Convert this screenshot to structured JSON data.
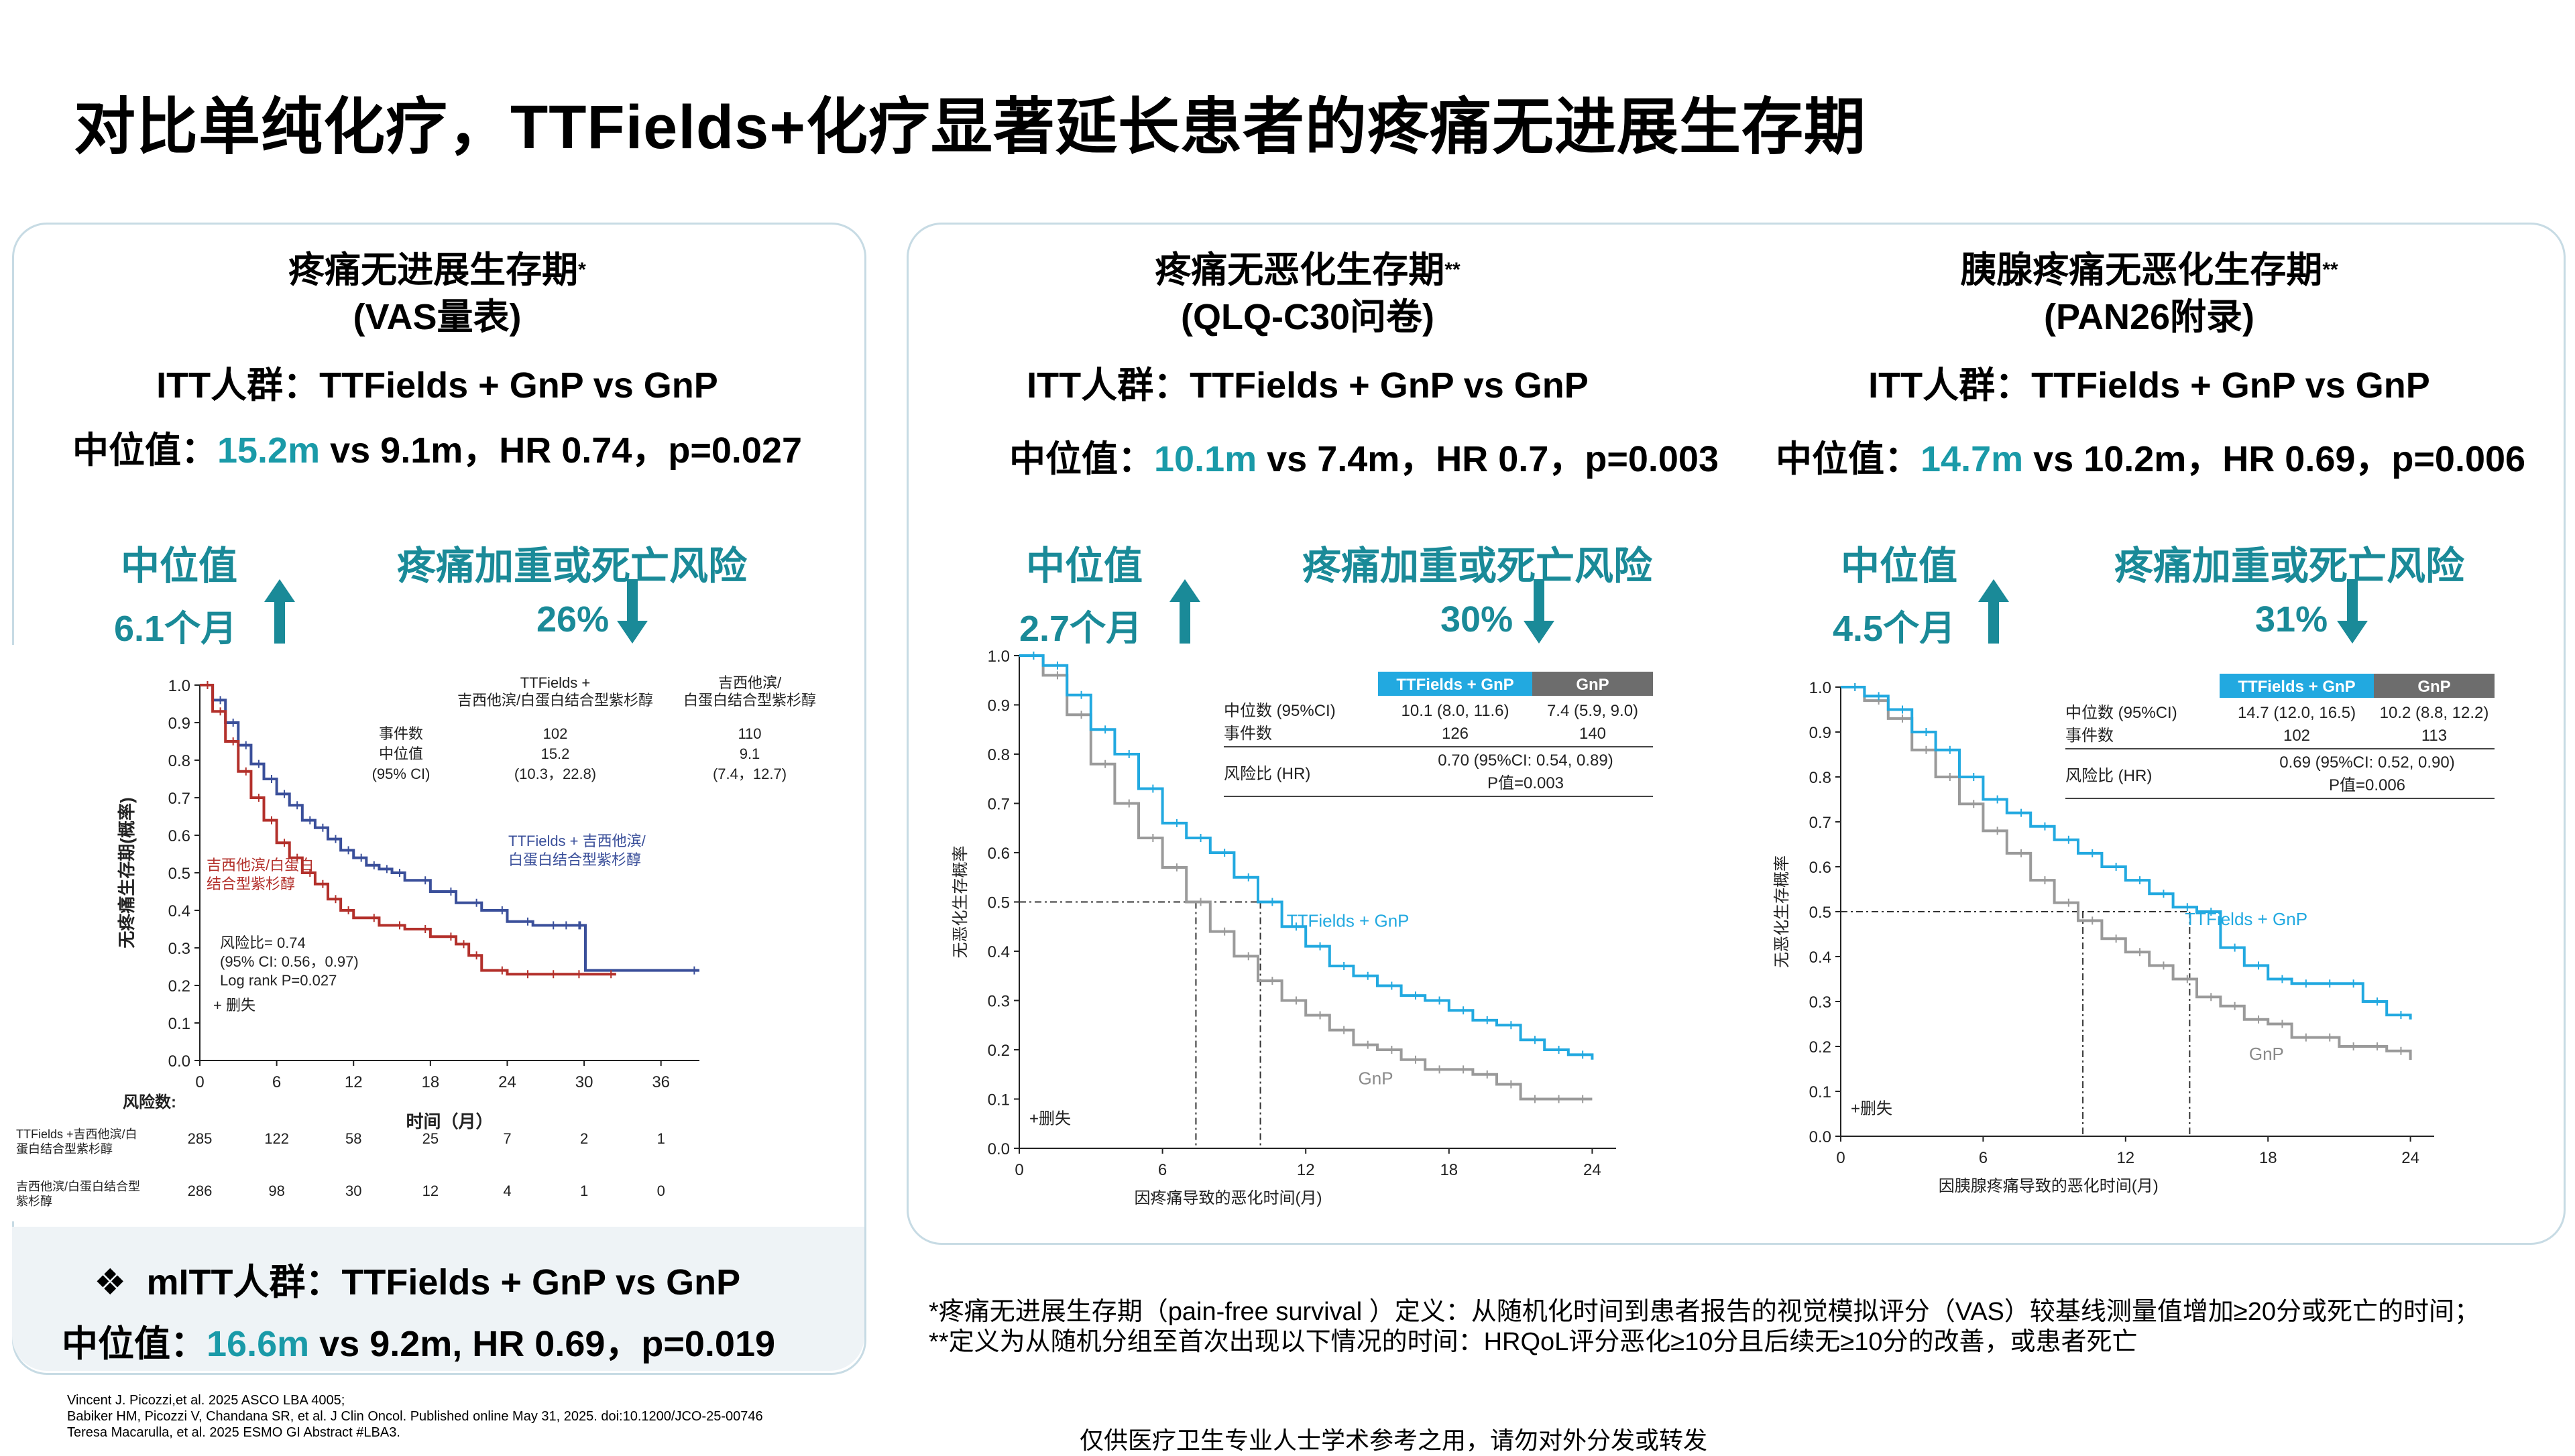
{
  "title": "对比单纯化疗，TTFields+化疗显著延长患者的疼痛无进展生存期",
  "panels": {
    "pfs": {
      "heading": "疼痛无进展生存期",
      "heading_mark": "*",
      "subheading": "(VAS量表)",
      "itt": "ITT人群：TTFields + GnP vs GnP",
      "median_prefix": "中位值：",
      "median_highlight": "15.2m",
      "median_rest": " vs 9.1m，HR 0.74，p=0.027",
      "stat1_label": "中位值",
      "stat1_value": "6.1个月",
      "stat2_label": "疼痛加重或死亡风险",
      "stat2_value": "26%",
      "mitt_bullet": "❖",
      "mitt": "mITT人群：TTFields + GnP vs GnP",
      "mitt_median_prefix": "中位值：",
      "mitt_median_highlight": "16.6m",
      "mitt_median_rest": " vs 9.2m, HR 0.69，p=0.019"
    },
    "qlq": {
      "heading": "疼痛无恶化生存期",
      "heading_mark": "**",
      "subheading": "(QLQ-C30问卷)",
      "itt": "ITT人群：TTFields + GnP vs GnP",
      "median_prefix": "中位值：",
      "median_highlight": "10.1m",
      "median_rest": " vs 7.4m，HR 0.7，p=0.003",
      "stat1_label": "中位值",
      "stat1_value": "2.7个月",
      "stat2_label": "疼痛加重或死亡风险",
      "stat2_value": "30%"
    },
    "pan": {
      "heading": "胰腺疼痛无恶化生存期",
      "heading_mark": "**",
      "subheading": "(PAN26附录)",
      "itt": "ITT人群：TTFields + GnP vs GnP",
      "median_prefix": "中位值：",
      "median_highlight": "14.7m",
      "median_rest": " vs 10.2m，HR 0.69，p=0.006",
      "stat1_label": "中位值",
      "stat1_value": "4.5个月",
      "stat2_label": "疼痛加重或死亡风险",
      "stat2_value": "31%"
    }
  },
  "chart_data": [
    {
      "type": "line",
      "name": "VAS pain-free survival KM curve",
      "ylabel": "无疼痛生存期(概率)",
      "xlabel": "时间（月）",
      "xticks": [
        0,
        6,
        12,
        18,
        24,
        30,
        36
      ],
      "yticks": [
        0.0,
        0.1,
        0.2,
        0.3,
        0.4,
        0.5,
        0.6,
        0.7,
        0.8,
        0.9,
        1.0
      ],
      "ylim": [
        0,
        1
      ],
      "xlim": [
        0,
        39
      ],
      "series": [
        {
          "name": "TTFields + 吉西他滨/白蛋白结合型紫杉醇",
          "color": "#3a4f9a",
          "x": [
            0,
            1,
            2,
            3,
            4,
            5,
            6,
            7,
            8,
            9,
            10,
            11,
            12,
            13,
            14,
            15,
            16,
            18,
            20,
            22,
            24,
            26,
            28,
            29,
            30,
            30.1,
            39
          ],
          "y": [
            1.0,
            0.96,
            0.9,
            0.84,
            0.79,
            0.75,
            0.71,
            0.68,
            0.64,
            0.62,
            0.59,
            0.56,
            0.54,
            0.52,
            0.51,
            0.5,
            0.48,
            0.45,
            0.42,
            0.4,
            0.37,
            0.36,
            0.36,
            0.36,
            0.36,
            0.24,
            0.24
          ]
        },
        {
          "name": "吉西他滨/白蛋白结合型紫杉醇",
          "color": "#b3302b",
          "x": [
            0,
            1,
            2,
            3,
            4,
            5,
            6,
            7,
            8,
            9,
            10,
            11,
            12,
            14,
            16,
            18,
            20,
            21,
            22,
            24,
            26,
            28,
            30,
            32.5
          ],
          "y": [
            1.0,
            0.93,
            0.85,
            0.77,
            0.7,
            0.64,
            0.58,
            0.54,
            0.5,
            0.47,
            0.43,
            0.4,
            0.38,
            0.36,
            0.35,
            0.33,
            0.31,
            0.28,
            0.24,
            0.23,
            0.23,
            0.23,
            0.23,
            0.23
          ]
        }
      ],
      "legend_top": {
        "col1_header": "TTFields +\n吉西他滨/白蛋白结合型紫杉醇",
        "col2_header": "吉西他滨/\n白蛋白结合型紫杉醇",
        "row_labels": [
          "事件数",
          "中位值",
          "(95% CI)"
        ],
        "col1": [
          "102",
          "15.2",
          "(10.3，22.8)"
        ],
        "col2": [
          "110",
          "9.1",
          "(7.4，12.7)"
        ]
      },
      "label_ttf": "TTFields + 吉西他滨/\n白蛋白结合型紫杉醇",
      "label_gnp": "吉西他滨/白蛋白\n结合型紫杉醇",
      "hr_text": [
        "风险比= 0.74",
        "(95% CI: 0.56，0.97)",
        "Log rank P=0.027"
      ],
      "censor_label": "+ 删失",
      "risk_title": "风险数:",
      "risk_rows": [
        {
          "label": "TTFields +吉西他滨/白\n蛋白结合型紫杉醇",
          "values": [
            "285",
            "122",
            "58",
            "25",
            "7",
            "2",
            "1"
          ]
        },
        {
          "label": "吉西他滨/白蛋白结合型\n紫杉醇",
          "values": [
            "286",
            "98",
            "30",
            "12",
            "4",
            "1",
            "0"
          ]
        }
      ]
    },
    {
      "type": "line",
      "name": "QLQ-C30 pain deterioration-free survival KM curve",
      "ylabel": "无恶化生存概率",
      "xlabel": "因疼痛导致的恶化时间(月)",
      "xticks": [
        0,
        6,
        12,
        18,
        24
      ],
      "yticks": [
        0.0,
        0.1,
        0.2,
        0.3,
        0.4,
        0.5,
        0.6,
        0.7,
        0.8,
        0.9,
        1.0
      ],
      "ylim": [
        0,
        1
      ],
      "xlim": [
        0,
        25
      ],
      "series": [
        {
          "name": "TTFields + GnP",
          "color": "#22a9e0",
          "x": [
            0,
            1,
            2,
            3,
            4,
            5,
            6,
            7,
            8,
            9,
            10,
            11,
            12,
            13,
            14,
            15,
            16,
            17,
            18,
            19,
            20,
            21,
            22,
            23,
            24
          ],
          "y": [
            1.0,
            0.98,
            0.92,
            0.85,
            0.8,
            0.73,
            0.66,
            0.63,
            0.6,
            0.55,
            0.5,
            0.45,
            0.41,
            0.37,
            0.35,
            0.33,
            0.31,
            0.3,
            0.28,
            0.26,
            0.25,
            0.22,
            0.2,
            0.19,
            0.18
          ]
        },
        {
          "name": "GnP",
          "color": "#9a9a9a",
          "x": [
            0,
            1,
            2,
            3,
            4,
            5,
            6,
            7,
            8,
            9,
            10,
            11,
            12,
            13,
            14,
            15,
            16,
            17,
            18,
            19,
            20,
            21,
            22,
            23,
            24
          ],
          "y": [
            1.0,
            0.96,
            0.88,
            0.78,
            0.7,
            0.63,
            0.57,
            0.5,
            0.44,
            0.39,
            0.34,
            0.3,
            0.27,
            0.24,
            0.21,
            0.2,
            0.18,
            0.16,
            0.16,
            0.15,
            0.13,
            0.1,
            0.1,
            0.1,
            0.1
          ]
        }
      ],
      "median_lines": [
        7.4,
        10.1
      ],
      "table": {
        "headers": [
          "TTFields + GnP",
          "GnP"
        ],
        "rows": [
          {
            "label": "中位数 (95%CI)",
            "values": [
              "10.1 (8.0, 11.6)",
              "7.4 (5.9, 9.0)"
            ]
          },
          {
            "label": "事件数",
            "values": [
              "126",
              "140"
            ]
          }
        ],
        "hr_label": "风险比 (HR)",
        "hr_value": "0.70 (95%CI: 0.54, 0.89)",
        "p_value": "P值=0.003"
      },
      "label_ttf": "TTFields + GnP",
      "label_gnp": "GnP",
      "censor_label": "+删失"
    },
    {
      "type": "line",
      "name": "PAN26 pancreatic pain deterioration-free survival KM curve",
      "ylabel": "无恶化生存概率",
      "xlabel": "因胰腺疼痛导致的恶化时间(月)",
      "xticks": [
        0,
        6,
        12,
        18,
        24
      ],
      "yticks": [
        0.0,
        0.1,
        0.2,
        0.3,
        0.4,
        0.5,
        0.6,
        0.7,
        0.8,
        0.9,
        1.0
      ],
      "ylim": [
        0,
        1
      ],
      "xlim": [
        0,
        25
      ],
      "series": [
        {
          "name": "TTFields + GnP",
          "color": "#22a9e0",
          "x": [
            0,
            1,
            2,
            3,
            4,
            5,
            6,
            7,
            8,
            9,
            10,
            11,
            12,
            13,
            14,
            15,
            16,
            17,
            18,
            19,
            20,
            21,
            22,
            23,
            24
          ],
          "y": [
            1.0,
            0.98,
            0.95,
            0.9,
            0.86,
            0.8,
            0.75,
            0.72,
            0.69,
            0.66,
            0.63,
            0.6,
            0.57,
            0.54,
            0.51,
            0.5,
            0.42,
            0.38,
            0.35,
            0.34,
            0.34,
            0.34,
            0.3,
            0.27,
            0.26
          ]
        },
        {
          "name": "GnP",
          "color": "#9a9a9a",
          "x": [
            0,
            1,
            2,
            3,
            4,
            5,
            6,
            7,
            8,
            9,
            10,
            11,
            12,
            13,
            14,
            15,
            16,
            17,
            18,
            19,
            20,
            21,
            22,
            23,
            24
          ],
          "y": [
            1.0,
            0.97,
            0.93,
            0.86,
            0.8,
            0.74,
            0.68,
            0.63,
            0.57,
            0.52,
            0.48,
            0.44,
            0.41,
            0.38,
            0.35,
            0.31,
            0.29,
            0.26,
            0.25,
            0.22,
            0.22,
            0.2,
            0.2,
            0.19,
            0.17
          ]
        }
      ],
      "median_lines": [
        10.2,
        14.7
      ],
      "table": {
        "headers": [
          "TTFields + GnP",
          "GnP"
        ],
        "rows": [
          {
            "label": "中位数 (95%CI)",
            "values": [
              "14.7 (12.0, 16.5)",
              "10.2 (8.8, 12.2)"
            ]
          },
          {
            "label": "事件数",
            "values": [
              "102",
              "113"
            ]
          }
        ],
        "hr_label": "风险比 (HR)",
        "hr_value": "0.69 (95%CI: 0.52, 0.90)",
        "p_value": "P值=0.006"
      },
      "label_ttf": "TTFields + GnP",
      "label_gnp": "GnP",
      "censor_label": "+删失"
    }
  ],
  "footnotes": {
    "line1": "*疼痛无进展生存期（pain-free survival ）定义：从随机化时间到患者报告的视觉模拟评分（VAS）较基线测量值增加≥20分或死亡的时间；",
    "line2": "**定义为从随机分组至首次出现以下情况的时间：HRQoL评分恶化≥10分且后续无≥10分的改善，或患者死亡"
  },
  "references": [
    "Vincent J. Picozzi,et al. 2025 ASCO LBA 4005;",
    "Babiker HM, Picozzi V, Chandana SR, et al. J Clin Oncol. Published online May 31, 2025. doi:10.1200/JCO-25-00746",
    "Teresa Macarulla, et al. 2025 ESMO GI  Abstract #LBA3."
  ],
  "disclaimer": "仅供医疗卫生专业人士学术参考之用，请勿对外分发或转发",
  "colors": {
    "teal": "#1a9aa8",
    "ttf_blue": "#22a9e0",
    "gnp_grey": "#9a9a9a",
    "ttf_navy": "#3a4f9a",
    "gnp_red": "#b3302b"
  }
}
